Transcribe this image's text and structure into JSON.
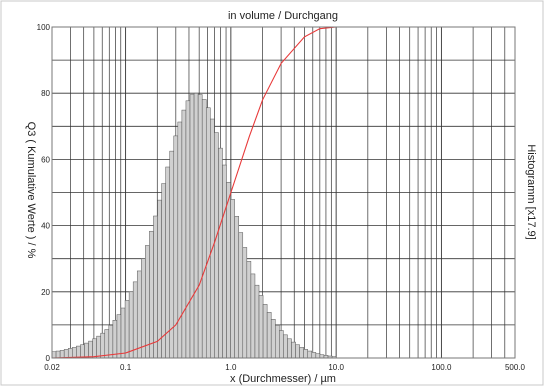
{
  "chart_data": {
    "type": "histogram-with-cumulative-line",
    "title": "in volume / Durchgang",
    "xlabel": "x (Durchmesser) / µm",
    "ylabel_left": "Q3 ( Kumulative Werte ) / %",
    "ylabel_right": "Histogramm [x17.9]",
    "x_scale": "log",
    "xlim": [
      0.02,
      500.0
    ],
    "ylim": [
      0,
      100
    ],
    "x_tick_labels": [
      "0.02",
      "0.1",
      "1.0",
      "10.0",
      "100.0",
      "500.0"
    ],
    "y_tick_labels": [
      "0",
      "20",
      "40",
      "60",
      "80",
      "100"
    ],
    "grid": true,
    "histogram": {
      "bin_count": 70,
      "x_min": 0.02,
      "x_max": 10.0,
      "mode_x": 1.0,
      "peak_value": 80,
      "values": [
        1.9,
        2.1,
        2.3,
        2.6,
        2.9,
        3.2,
        3.6,
        4.0,
        4.5,
        5.1,
        5.8,
        6.6,
        7.5,
        8.6,
        9.9,
        11.4,
        13.1,
        15.1,
        17.4,
        20.0,
        23.0,
        26.3,
        30.0,
        34.0,
        38.3,
        42.9,
        47.7,
        52.7,
        57.7,
        62.5,
        67.1,
        71.3,
        74.9,
        77.7,
        79.6,
        80.0,
        79.6,
        78.1,
        75.6,
        72.2,
        68.1,
        63.4,
        58.3,
        53.1,
        47.9,
        42.8,
        37.9,
        33.4,
        29.2,
        25.4,
        22.0,
        18.9,
        16.2,
        13.8,
        11.7,
        9.9,
        8.3,
        7.0,
        5.8,
        4.8,
        4.0,
        3.2,
        2.6,
        2.1,
        1.7,
        1.3,
        1.0,
        0.8,
        0.6,
        0.4
      ]
    },
    "cumulative_series": {
      "color": "#e83a3a",
      "x": [
        0.02,
        0.05,
        0.1,
        0.2,
        0.3,
        0.5,
        0.7,
        1.0,
        1.5,
        2.0,
        3.0,
        5.0,
        7.0,
        10.0,
        20.0,
        100.0,
        500.0
      ],
      "y": [
        0,
        0.4,
        1.5,
        5,
        10,
        22,
        35,
        50,
        67,
        78,
        89,
        97,
        99.5,
        100,
        100,
        100,
        100
      ]
    },
    "colors": {
      "bar_fill": "#d0d0d0",
      "bar_stroke": "#555555",
      "grid": "#333333",
      "frame": "#777777",
      "cumulative_line": "#e83a3a"
    }
  }
}
